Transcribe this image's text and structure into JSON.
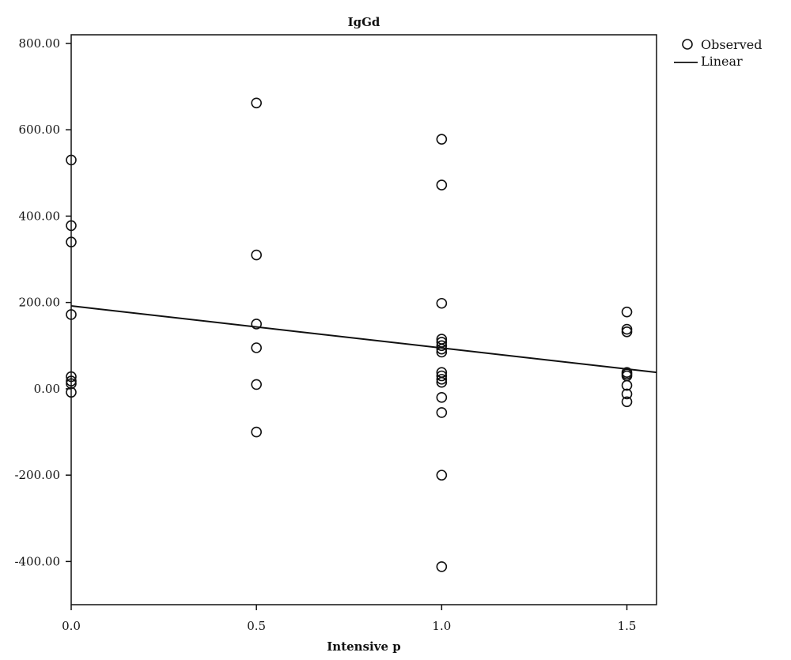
{
  "chart_data": {
    "type": "scatter",
    "title": "IgGd",
    "xlabel": "Intensive p",
    "ylabel": "",
    "xlim": [
      0.0,
      1.58
    ],
    "ylim": [
      -500,
      820
    ],
    "x_ticks": [
      0.0,
      0.5,
      1.0,
      1.5
    ],
    "x_tick_labels": [
      "0.0",
      "0.5",
      "1.0",
      "1.5"
    ],
    "y_ticks": [
      -400,
      -200,
      0,
      200,
      400,
      600,
      800
    ],
    "y_tick_labels": [
      "-400.00",
      "-200.00",
      "0.00",
      "200.00",
      "400.00",
      "600.00",
      "800.00"
    ],
    "grid": false,
    "legend": {
      "position": "top-right",
      "entries": [
        "Observed",
        "Linear"
      ]
    },
    "series": [
      {
        "name": "Observed",
        "kind": "points",
        "points": [
          [
            0.0,
            530
          ],
          [
            0.0,
            378
          ],
          [
            0.0,
            340
          ],
          [
            0.0,
            172
          ],
          [
            0.0,
            28
          ],
          [
            0.0,
            18
          ],
          [
            0.0,
            12
          ],
          [
            0.0,
            -8
          ],
          [
            0.5,
            662
          ],
          [
            0.5,
            310
          ],
          [
            0.5,
            150
          ],
          [
            0.5,
            95
          ],
          [
            0.5,
            10
          ],
          [
            0.5,
            -100
          ],
          [
            1.0,
            578
          ],
          [
            1.0,
            472
          ],
          [
            1.0,
            198
          ],
          [
            1.0,
            115
          ],
          [
            1.0,
            108
          ],
          [
            1.0,
            100
          ],
          [
            1.0,
            92
          ],
          [
            1.0,
            85
          ],
          [
            1.0,
            38
          ],
          [
            1.0,
            30
          ],
          [
            1.0,
            22
          ],
          [
            1.0,
            15
          ],
          [
            1.0,
            -20
          ],
          [
            1.0,
            -55
          ],
          [
            1.0,
            -200
          ],
          [
            1.0,
            -412
          ],
          [
            1.5,
            178
          ],
          [
            1.5,
            138
          ],
          [
            1.5,
            132
          ],
          [
            1.5,
            38
          ],
          [
            1.5,
            34
          ],
          [
            1.5,
            30
          ],
          [
            1.5,
            8
          ],
          [
            1.5,
            -12
          ],
          [
            1.5,
            -30
          ]
        ]
      },
      {
        "name": "Linear",
        "kind": "line",
        "points": [
          [
            0.0,
            192
          ],
          [
            1.58,
            38
          ]
        ]
      }
    ]
  }
}
